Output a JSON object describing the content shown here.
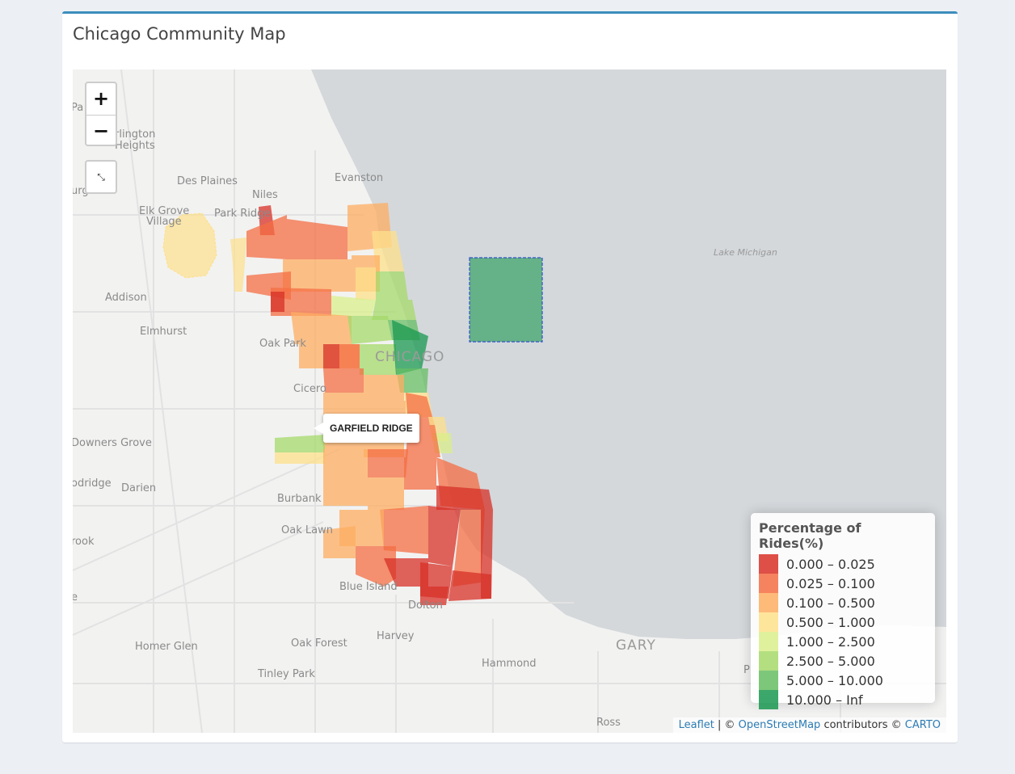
{
  "box": {
    "title": "Chicago Community Map"
  },
  "colors": {
    "c1": "#d73027",
    "c2": "#f46d43",
    "c3": "#fdae61",
    "c4": "#fee08b",
    "c5": "#d9ef8b",
    "c6": "#a6d96a",
    "c7": "#66bd63",
    "c8": "#1a9850",
    "lake": "#d4d8db",
    "accent": "#3c8dbc"
  },
  "map": {
    "zoom_in": "+",
    "zoom_out": "−",
    "reset_icon": "⤡",
    "places": {
      "arlington": "rlington",
      "heights": "Heights",
      "des_plaines": "Des Plaines",
      "evanston": "Evanston",
      "niles": "Niles",
      "elk_grove": "Elk Grove",
      "village": "Village",
      "park_ridge": "Park Ridge",
      "lake_michigan": "Lake Michigan",
      "addison": "Addison",
      "elmhurst": "Elmhurst",
      "oak_park": "Oak Park",
      "chicago": "CHICAGO",
      "cicero": "Cicero",
      "downers_grove": "Downers Grove",
      "woodridge": "odridge",
      "darien": "Darien",
      "burbank": "Burbank",
      "oak_lawn": "Oak Lawn",
      "brook": "rook",
      "blue_island": "Blue Island",
      "dolton": "Dolton",
      "harvey": "Harvey",
      "homer_glen": "Homer Glen",
      "oak_forest": "Oak Forest",
      "gary": "GARY",
      "tinley_park": "Tinley Park",
      "hammond": "Hammond",
      "ross": "Ross",
      "pa": "Pa",
      "urg": "urg",
      "e": "e",
      "p": "P"
    },
    "tooltip": "GARFIELD RIDGE",
    "attribution": {
      "leaflet": "Leaflet",
      "sep": " | © ",
      "osm": "OpenStreetMap",
      "contributors": " contributors © ",
      "carto": "CARTO"
    }
  },
  "legend": {
    "title": "Percentage of Rides(%)",
    "items": [
      {
        "label": "0.000 – 0.025",
        "color": "#d73027"
      },
      {
        "label": "0.025 – 0.100",
        "color": "#f46d43"
      },
      {
        "label": "0.100 – 0.500",
        "color": "#fdae61"
      },
      {
        "label": "0.500 – 1.000",
        "color": "#fee08b"
      },
      {
        "label": "1.000 – 2.500",
        "color": "#d9ef8b"
      },
      {
        "label": "2.500 – 5.000",
        "color": "#a6d96a"
      },
      {
        "label": "5.000 – 10.000",
        "color": "#66bd63"
      },
      {
        "label": "10.000 – Inf",
        "color": "#1a9850"
      }
    ]
  }
}
